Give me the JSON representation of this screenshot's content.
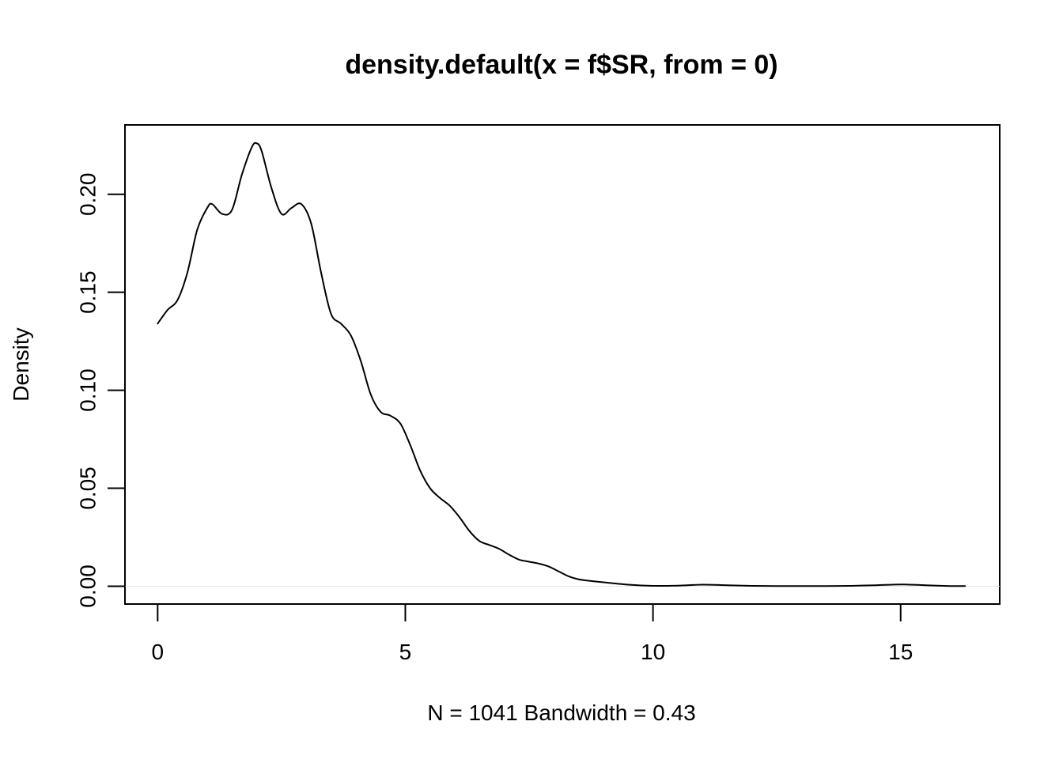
{
  "chart_data": {
    "type": "line",
    "title": "density.default(x = f$SR, from = 0)",
    "xlabel": "N = 1041   Bandwidth = 0.43",
    "ylabel": "Density",
    "xlim": [
      -0.66,
      17.0
    ],
    "ylim": [
      -0.0091,
      0.2354
    ],
    "x_ticks": [
      0,
      5,
      10,
      15
    ],
    "x_tick_labels": [
      "0",
      "5",
      "10",
      "15"
    ],
    "y_ticks": [
      0.0,
      0.05,
      0.1,
      0.15,
      0.2
    ],
    "y_tick_labels": [
      "0.00",
      "0.05",
      "0.10",
      "0.15",
      "0.20"
    ],
    "grid": false,
    "baseline": 0,
    "series": [
      {
        "x": [
          0.0,
          0.2,
          0.4,
          0.6,
          0.8,
          1.0,
          1.1,
          1.3,
          1.5,
          1.7,
          1.9,
          2.0,
          2.1,
          2.3,
          2.5,
          2.7,
          2.9,
          3.1,
          3.3,
          3.5,
          3.7,
          3.9,
          4.1,
          4.3,
          4.5,
          4.7,
          4.9,
          5.1,
          5.3,
          5.5,
          5.7,
          5.9,
          6.1,
          6.3,
          6.5,
          6.7,
          6.9,
          7.1,
          7.3,
          7.5,
          7.7,
          7.9,
          8.1,
          8.3,
          8.5,
          8.7,
          9.0,
          9.5,
          10.0,
          10.5,
          11.0,
          11.5,
          12.0,
          12.5,
          13.0,
          13.5,
          14.0,
          14.5,
          15.0,
          15.5,
          16.0,
          16.3
        ],
        "y": [
          0.134,
          0.141,
          0.146,
          0.16,
          0.182,
          0.193,
          0.195,
          0.19,
          0.192,
          0.21,
          0.224,
          0.226,
          0.222,
          0.203,
          0.19,
          0.193,
          0.195,
          0.185,
          0.16,
          0.139,
          0.134,
          0.128,
          0.115,
          0.098,
          0.089,
          0.087,
          0.083,
          0.072,
          0.059,
          0.05,
          0.045,
          0.041,
          0.035,
          0.028,
          0.023,
          0.021,
          0.019,
          0.016,
          0.0135,
          0.0125,
          0.0115,
          0.01,
          0.0075,
          0.005,
          0.0035,
          0.0028,
          0.002,
          0.0008,
          0.0002,
          0.0003,
          0.0008,
          0.0005,
          0.0002,
          0.0001,
          0.0001,
          0.0001,
          0.0002,
          0.0005,
          0.0009,
          0.0005,
          0.0001,
          0.0001
        ]
      }
    ]
  }
}
